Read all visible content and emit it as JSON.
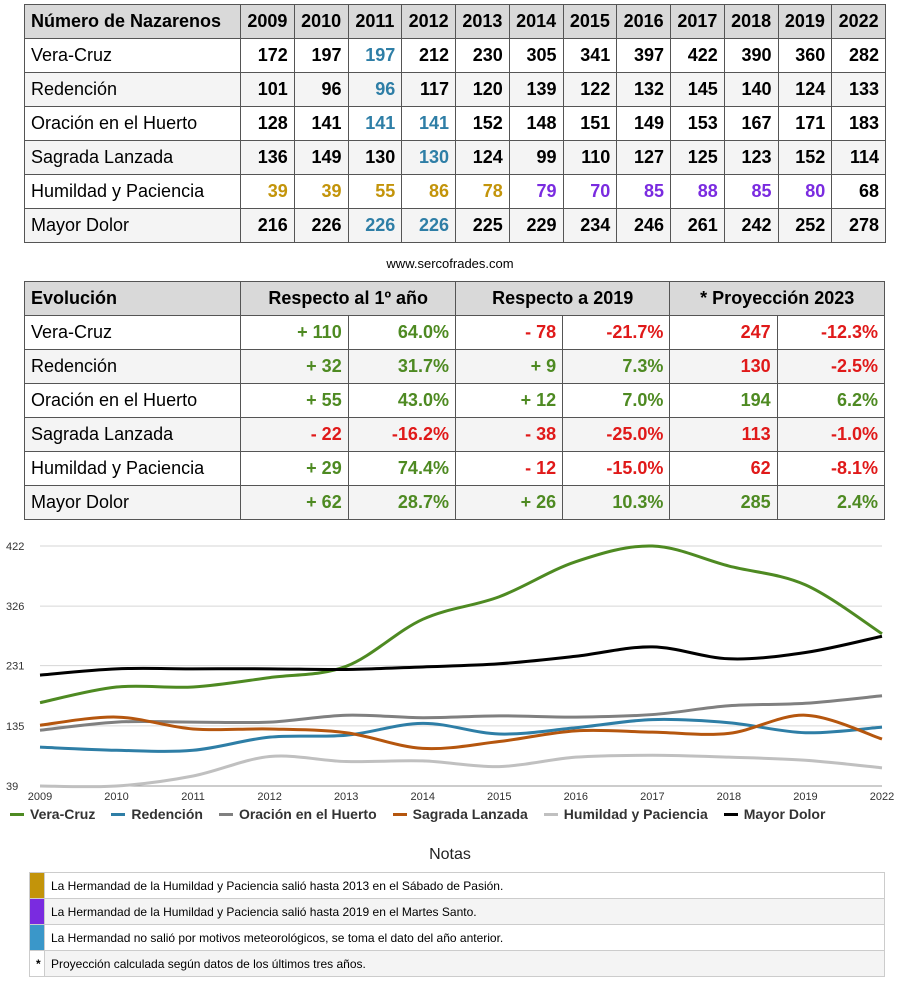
{
  "table1": {
    "header_label": "Número de Nazarenos",
    "years": [
      "2009",
      "2010",
      "2011",
      "2012",
      "2013",
      "2014",
      "2015",
      "2016",
      "2017",
      "2018",
      "2019",
      "2022"
    ],
    "rows": [
      {
        "name": "Vera-Cruz",
        "values": [
          "172",
          "197",
          "197",
          "212",
          "230",
          "305",
          "341",
          "397",
          "422",
          "390",
          "360",
          "282"
        ],
        "styles": [
          "",
          "",
          "blue",
          "",
          "",
          "",
          "",
          "",
          "",
          "",
          "",
          ""
        ]
      },
      {
        "name": "Redención",
        "values": [
          "101",
          "96",
          "96",
          "117",
          "120",
          "139",
          "122",
          "132",
          "145",
          "140",
          "124",
          "133"
        ],
        "styles": [
          "",
          "",
          "blue",
          "",
          "",
          "",
          "",
          "",
          "",
          "",
          "",
          ""
        ]
      },
      {
        "name": "Oración en el Huerto",
        "values": [
          "128",
          "141",
          "141",
          "141",
          "152",
          "148",
          "151",
          "149",
          "153",
          "167",
          "171",
          "183"
        ],
        "styles": [
          "",
          "",
          "blue",
          "blue",
          "",
          "",
          "",
          "",
          "",
          "",
          "",
          ""
        ]
      },
      {
        "name": "Sagrada Lanzada",
        "values": [
          "136",
          "149",
          "130",
          "130",
          "124",
          "99",
          "110",
          "127",
          "125",
          "123",
          "152",
          "114"
        ],
        "styles": [
          "",
          "",
          "",
          "blue",
          "",
          "",
          "",
          "",
          "",
          "",
          "",
          ""
        ]
      },
      {
        "name": "Humildad y Paciencia",
        "values": [
          "39",
          "39",
          "55",
          "86",
          "78",
          "79",
          "70",
          "85",
          "88",
          "85",
          "80",
          "68"
        ],
        "styles": [
          "gold",
          "gold",
          "gold",
          "gold",
          "gold",
          "purple",
          "purple",
          "purple",
          "purple",
          "purple",
          "purple",
          ""
        ]
      },
      {
        "name": "Mayor Dolor",
        "values": [
          "216",
          "226",
          "226",
          "226",
          "225",
          "229",
          "234",
          "246",
          "261",
          "242",
          "252",
          "278"
        ],
        "styles": [
          "",
          "",
          "blue",
          "blue",
          "",
          "",
          "",
          "",
          "",
          "",
          "",
          ""
        ]
      }
    ]
  },
  "source": "www.sercofrades.com",
  "table2": {
    "header_label": "Evolución",
    "col1": "Respecto al 1º año",
    "col2": "Respecto a 2019",
    "col3": "* Proyección 2023",
    "rows": [
      {
        "name": "Vera-Cruz",
        "d1": "+ 110",
        "p1": "64.0%",
        "d2": "- 78",
        "p2": "-21.7%",
        "proj": "247",
        "pp": "-12.3%",
        "c1": "green",
        "c2": "red",
        "c3": "red"
      },
      {
        "name": "Redención",
        "d1": "+ 32",
        "p1": "31.7%",
        "d2": "+ 9",
        "p2": "7.3%",
        "proj": "130",
        "pp": "-2.5%",
        "c1": "green",
        "c2": "green",
        "c3": "red"
      },
      {
        "name": "Oración en el Huerto",
        "d1": "+ 55",
        "p1": "43.0%",
        "d2": "+ 12",
        "p2": "7.0%",
        "proj": "194",
        "pp": "6.2%",
        "c1": "green",
        "c2": "green",
        "c3": "green"
      },
      {
        "name": "Sagrada Lanzada",
        "d1": "- 22",
        "p1": "-16.2%",
        "d2": "- 38",
        "p2": "-25.0%",
        "proj": "113",
        "pp": "-1.0%",
        "c1": "red",
        "c2": "red",
        "c3": "red"
      },
      {
        "name": "Humildad y Paciencia",
        "d1": "+ 29",
        "p1": "74.4%",
        "d2": "- 12",
        "p2": "-15.0%",
        "proj": "62",
        "pp": "-8.1%",
        "c1": "green",
        "c2": "red",
        "c3": "red"
      },
      {
        "name": "Mayor Dolor",
        "d1": "+ 62",
        "p1": "28.7%",
        "d2": "+ 26",
        "p2": "10.3%",
        "proj": "285",
        "pp": "2.4%",
        "c1": "green",
        "c2": "green",
        "c3": "green"
      }
    ]
  },
  "colors": {
    "blue": "#2e7ea6",
    "gold": "#c3940a",
    "purple": "#7a2be0",
    "green": "#4e8a22",
    "red": "#e01919"
  },
  "chart_data": {
    "type": "line",
    "x": [
      "2009",
      "2010",
      "2011",
      "2012",
      "2013",
      "2014",
      "2015",
      "2016",
      "2017",
      "2018",
      "2019",
      "2022"
    ],
    "yticks": [
      39,
      135,
      231,
      326,
      422
    ],
    "ylim": [
      39,
      422
    ],
    "grid": true,
    "legend_position": "bottom",
    "series": [
      {
        "name": "Vera-Cruz",
        "color": "#4e8a22",
        "values": [
          172,
          197,
          197,
          212,
          230,
          305,
          341,
          397,
          422,
          390,
          360,
          282
        ]
      },
      {
        "name": "Redención",
        "color": "#2e7ea6",
        "values": [
          101,
          96,
          96,
          117,
          120,
          139,
          122,
          132,
          145,
          140,
          124,
          133
        ]
      },
      {
        "name": "Oración en el Huerto",
        "color": "#808080",
        "values": [
          128,
          141,
          141,
          141,
          152,
          148,
          151,
          149,
          153,
          167,
          171,
          183
        ]
      },
      {
        "name": "Sagrada Lanzada",
        "color": "#b5560e",
        "values": [
          136,
          149,
          130,
          130,
          124,
          99,
          110,
          127,
          125,
          123,
          152,
          114
        ]
      },
      {
        "name": "Humildad y Paciencia",
        "color": "#c0c0c0",
        "values": [
          39,
          39,
          55,
          86,
          78,
          79,
          70,
          85,
          88,
          85,
          80,
          68
        ]
      },
      {
        "name": "Mayor Dolor",
        "color": "#000000",
        "values": [
          216,
          226,
          226,
          226,
          225,
          229,
          234,
          246,
          261,
          242,
          252,
          278
        ]
      }
    ]
  },
  "notes": {
    "title": "Notas",
    "items": [
      {
        "swatch": "#c3940a",
        "text": "La Hermandad de la Humildad y Paciencia salió hasta 2013 en el Sábado de Pasión."
      },
      {
        "swatch": "#7a2be0",
        "text": "La Hermandad de la Humildad y Paciencia salió hasta 2019 en el Martes Santo."
      },
      {
        "swatch": "#3a97c9",
        "text": "La Hermandad no salió por motivos meteorológicos, se toma el dato del año anterior."
      },
      {
        "symbol": "*",
        "text": "Proyección calculada según datos de los últimos tres años."
      }
    ]
  }
}
